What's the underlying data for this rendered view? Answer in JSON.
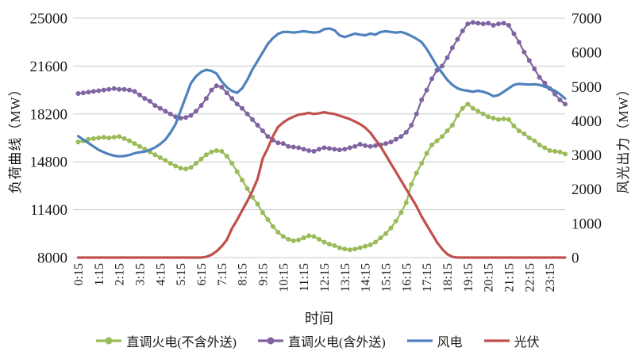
{
  "chart_data": {
    "type": "line",
    "title": "",
    "xlabel": "时间",
    "legend_position": "bottom",
    "grid": {
      "horizontal": true,
      "color": "#c9c9c9"
    },
    "left_axis": {
      "label": "负荷曲线（MW）",
      "min": 8000,
      "max": 25000,
      "ticks": [
        8000,
        11400,
        14800,
        18200,
        21600,
        25000
      ]
    },
    "right_axis": {
      "label": "风光出力（MW）",
      "min": 0,
      "max": 7000,
      "ticks": [
        0,
        1000,
        2000,
        3000,
        4000,
        5000,
        6000,
        7000
      ]
    },
    "x_tick_labels": [
      "0:15",
      "1:15",
      "2:15",
      "3:15",
      "4:15",
      "5:15",
      "6:15",
      "7:15",
      "8:15",
      "9:15",
      "10:15",
      "11:15",
      "12:15",
      "13:15",
      "14:15",
      "15:15",
      "16:15",
      "17:15",
      "18:15",
      "19:15",
      "20:15",
      "21:15",
      "22:15",
      "23:15"
    ],
    "x_start": "0:15",
    "x_interval_minutes": 15,
    "x_points": 96,
    "series": [
      {
        "id": "thermal-excl-export",
        "name": "直调火电(不含外送)",
        "axis": "left",
        "color": "#9bbb59",
        "marker": "circle",
        "values": [
          16200,
          16300,
          16400,
          16450,
          16500,
          16550,
          16500,
          16550,
          16600,
          16450,
          16300,
          16100,
          15900,
          15700,
          15500,
          15300,
          15100,
          14900,
          14700,
          14500,
          14350,
          14300,
          14400,
          14700,
          15000,
          15300,
          15500,
          15600,
          15550,
          15200,
          14700,
          14100,
          13500,
          12900,
          12300,
          11800,
          11200,
          10700,
          10200,
          9800,
          9500,
          9300,
          9200,
          9250,
          9400,
          9550,
          9500,
          9300,
          9100,
          8950,
          8850,
          8700,
          8600,
          8550,
          8600,
          8700,
          8800,
          8900,
          9100,
          9400,
          9700,
          10100,
          10600,
          11200,
          11900,
          13200,
          14000,
          14700,
          15400,
          16000,
          16300,
          16600,
          17000,
          17400,
          18100,
          18600,
          18900,
          18600,
          18400,
          18200,
          18000,
          17900,
          17800,
          17850,
          17800,
          17350,
          17000,
          16800,
          16500,
          16300,
          16000,
          15800,
          15600,
          15550,
          15500,
          15350
        ]
      },
      {
        "id": "thermal-incl-export",
        "name": "直调火电(含外送)",
        "axis": "left",
        "color": "#8064a2",
        "marker": "circle",
        "values": [
          19650,
          19700,
          19750,
          19800,
          19850,
          19900,
          19950,
          20000,
          19950,
          19950,
          19900,
          19800,
          19550,
          19300,
          19100,
          18800,
          18600,
          18400,
          18200,
          18000,
          17900,
          17950,
          18100,
          18400,
          18800,
          19300,
          19900,
          20200,
          20100,
          19700,
          19300,
          18900,
          18600,
          18200,
          17800,
          17400,
          17000,
          16600,
          16350,
          16150,
          16100,
          15900,
          15850,
          15800,
          15700,
          15600,
          15550,
          15700,
          15800,
          15750,
          15700,
          15650,
          15700,
          15800,
          15900,
          16050,
          15950,
          15900,
          15950,
          16000,
          16100,
          16200,
          16400,
          16600,
          16900,
          17400,
          18200,
          19200,
          19900,
          20700,
          21300,
          21600,
          22200,
          22900,
          23500,
          24100,
          24600,
          24700,
          24650,
          24600,
          24650,
          24500,
          24600,
          24650,
          24500,
          23900,
          23300,
          22600,
          22000,
          21400,
          20800,
          20400,
          20000,
          19600,
          19200,
          18900
        ]
      },
      {
        "id": "wind",
        "name": "风电",
        "axis": "right",
        "color": "#4f81bd",
        "marker": "none",
        "values": [
          3550,
          3450,
          3350,
          3250,
          3150,
          3080,
          3020,
          2980,
          2960,
          2970,
          3000,
          3050,
          3080,
          3100,
          3150,
          3220,
          3320,
          3450,
          3650,
          3900,
          4300,
          4700,
          5100,
          5300,
          5430,
          5490,
          5460,
          5380,
          5150,
          4980,
          4870,
          4820,
          4950,
          5200,
          5500,
          5750,
          6000,
          6250,
          6420,
          6540,
          6600,
          6600,
          6580,
          6600,
          6620,
          6600,
          6580,
          6600,
          6680,
          6700,
          6650,
          6500,
          6450,
          6500,
          6550,
          6520,
          6500,
          6550,
          6520,
          6600,
          6620,
          6600,
          6580,
          6600,
          6550,
          6480,
          6400,
          6300,
          6100,
          5850,
          5600,
          5400,
          5200,
          5050,
          4950,
          4900,
          4880,
          4850,
          4880,
          4850,
          4800,
          4720,
          4750,
          4850,
          4950,
          5050,
          5080,
          5070,
          5060,
          5070,
          5050,
          5000,
          4950,
          4880,
          4780,
          4650
        ]
      },
      {
        "id": "solar",
        "name": "光伏",
        "axis": "right",
        "color": "#c0504d",
        "marker": "none",
        "values": [
          0,
          0,
          0,
          0,
          0,
          0,
          0,
          0,
          0,
          0,
          0,
          0,
          0,
          0,
          0,
          0,
          0,
          0,
          0,
          0,
          0,
          0,
          0,
          0,
          0,
          20,
          80,
          180,
          330,
          520,
          850,
          1100,
          1380,
          1650,
          1950,
          2300,
          2900,
          3200,
          3550,
          3820,
          3950,
          4050,
          4120,
          4180,
          4200,
          4230,
          4200,
          4220,
          4250,
          4220,
          4200,
          4150,
          4100,
          4050,
          3980,
          3900,
          3800,
          3650,
          3450,
          3250,
          3000,
          2750,
          2500,
          2250,
          2000,
          1750,
          1500,
          1200,
          950,
          700,
          450,
          250,
          100,
          20,
          0,
          0,
          0,
          0,
          0,
          0,
          0,
          0,
          0,
          0,
          0,
          0,
          0,
          0,
          0,
          0,
          0,
          0,
          0,
          0,
          0,
          0
        ]
      }
    ]
  }
}
